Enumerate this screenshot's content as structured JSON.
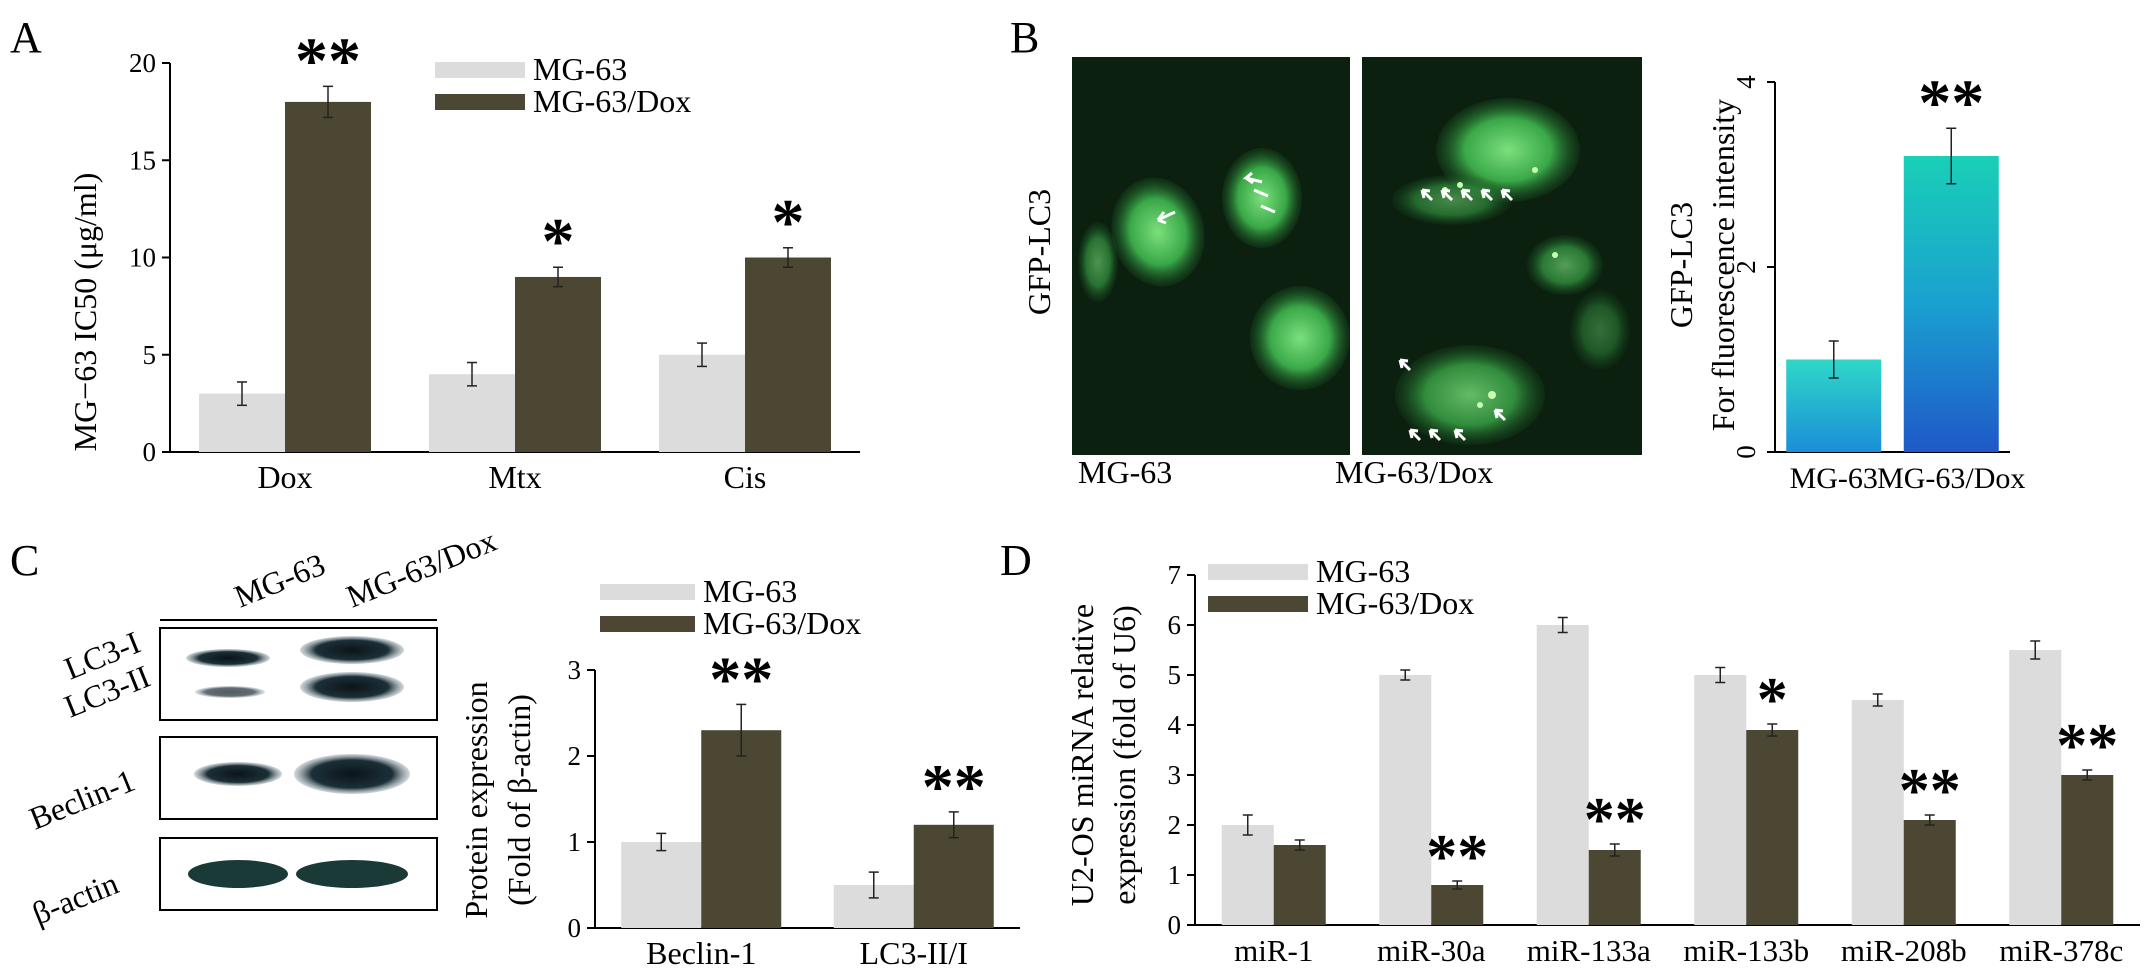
{
  "colors": {
    "mg63": "#dcdcdc",
    "dox": "#4b4733",
    "axis": "#000000",
    "micro_bg": "#0b200f",
    "cell": "#4fc25a",
    "teal": "#23c6b6",
    "blue": "#1f6fd0"
  },
  "chart_data": [
    {
      "panel": "A",
      "type": "bar",
      "categories": [
        "Dox",
        "Mtx",
        "Cis"
      ],
      "series": [
        {
          "name": "MG-63",
          "values": [
            3,
            4,
            5
          ],
          "errors": [
            0.6,
            0.6,
            0.6
          ]
        },
        {
          "name": "MG-63/Dox",
          "values": [
            18,
            9,
            10
          ],
          "errors": [
            0.8,
            0.5,
            0.5
          ]
        }
      ],
      "significance": [
        "**",
        "*",
        "*"
      ],
      "ylabel": "MG−63   IC50 (μg/ml)",
      "ylim": [
        0,
        20
      ],
      "yticks": [
        "0",
        "5",
        "10",
        "15",
        "20"
      ],
      "legend": "top-center"
    },
    {
      "panel": "B",
      "type": "bar",
      "categories": [
        "MG-63",
        "MG-63/Dox"
      ],
      "values": [
        1,
        3.2
      ],
      "errors": [
        0.2,
        0.3
      ],
      "significance": [
        "",
        "**"
      ],
      "ylabel_line1": "GFP-LC3",
      "ylabel_line2": "For fluorescence intensity",
      "ylim": [
        0,
        4
      ],
      "yticks": [
        "0",
        "2",
        "4"
      ],
      "image_labels": [
        "MG-63",
        "MG-63/Dox"
      ],
      "side_label": "GFP-LC3"
    },
    {
      "panel": "C",
      "type": "bar",
      "categories": [
        "Beclin-1",
        "LC3-II/I"
      ],
      "series": [
        {
          "name": "MG-63",
          "values": [
            1,
            0.5
          ],
          "errors": [
            0.1,
            0.15
          ]
        },
        {
          "name": "MG-63/Dox",
          "values": [
            2.3,
            1.2
          ],
          "errors": [
            0.3,
            0.15
          ]
        }
      ],
      "significance": [
        "**",
        "**"
      ],
      "ylabel_line1": "Protein expression",
      "ylabel_line2": "(Fold of β-actin)",
      "ylim": [
        0,
        3
      ],
      "yticks": [
        "0",
        "1",
        "2",
        "3"
      ],
      "legend": "top",
      "blot_columns": [
        "MG-63",
        "MG-63/Dox"
      ],
      "blot_rows": [
        "LC3-I",
        "LC3-II",
        "Beclin-1",
        "β-actin"
      ]
    },
    {
      "panel": "D",
      "type": "bar",
      "categories": [
        "miR-1",
        "miR-30a",
        "miR-133a",
        "miR-133b",
        "miR-208b",
        "miR-378c"
      ],
      "series": [
        {
          "name": "MG-63",
          "values": [
            2,
            5,
            6,
            5,
            4.5,
            5.5
          ],
          "errors": [
            0.2,
            0.1,
            0.15,
            0.15,
            0.12,
            0.18
          ]
        },
        {
          "name": "MG-63/Dox",
          "values": [
            1.6,
            0.8,
            1.5,
            3.9,
            2.1,
            3.0
          ],
          "errors": [
            0.1,
            0.08,
            0.12,
            0.12,
            0.1,
            0.1
          ]
        }
      ],
      "significance": [
        "",
        "**",
        "**",
        "*",
        "**",
        "**"
      ],
      "ylabel_line1": "U2-OS miRNA  relative",
      "ylabel_line2": "expression (fold of U6)",
      "ylim": [
        0,
        7
      ],
      "yticks": [
        "0",
        "1",
        "2",
        "3",
        "4",
        "5",
        "6",
        "7"
      ],
      "legend": "top-left"
    }
  ],
  "panel_letters": [
    "A",
    "B",
    "C",
    "D"
  ]
}
